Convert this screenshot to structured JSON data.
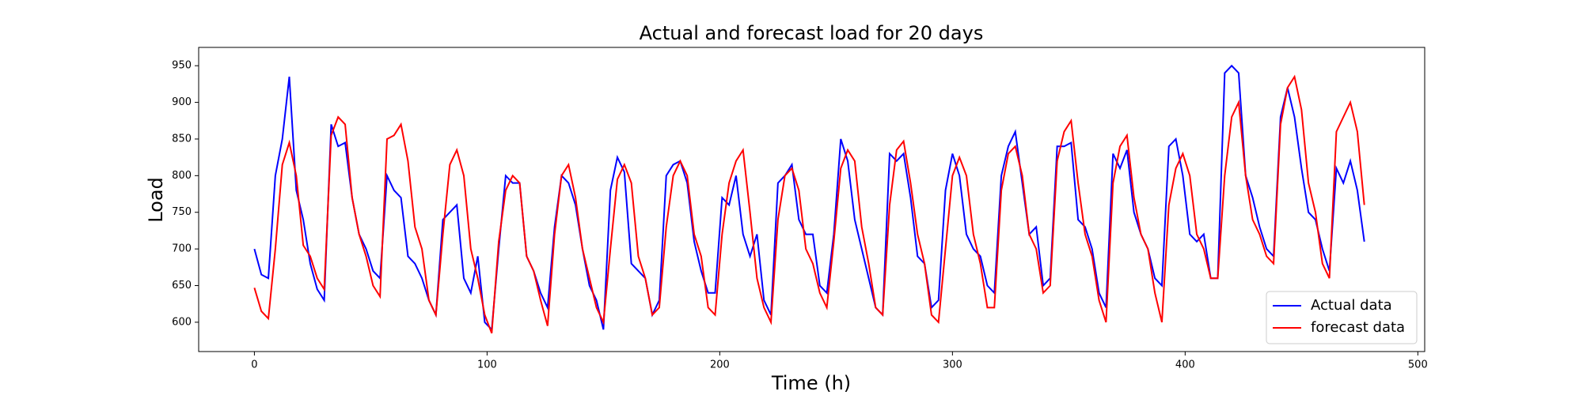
{
  "chart_data": {
    "type": "line",
    "title": "Actual and forecast load for 20 days",
    "xlabel": "Time (h)",
    "ylabel": "Load",
    "x": [
      0,
      3,
      6,
      9,
      12,
      15,
      18,
      21,
      24,
      27,
      30,
      33,
      36,
      39,
      42,
      45,
      48,
      51,
      54,
      57,
      60,
      63,
      66,
      69,
      72,
      75,
      78,
      81,
      84,
      87,
      90,
      93,
      96,
      99,
      102,
      105,
      108,
      111,
      114,
      117,
      120,
      123,
      126,
      129,
      132,
      135,
      138,
      141,
      144,
      147,
      150,
      153,
      156,
      159,
      162,
      165,
      168,
      171,
      174,
      177,
      180,
      183,
      186,
      189,
      192,
      195,
      198,
      201,
      204,
      207,
      210,
      213,
      216,
      219,
      222,
      225,
      228,
      231,
      234,
      237,
      240,
      243,
      246,
      249,
      252,
      255,
      258,
      261,
      264,
      267,
      270,
      273,
      276,
      279,
      282,
      285,
      288,
      291,
      294,
      297,
      300,
      303,
      306,
      309,
      312,
      315,
      318,
      321,
      324,
      327,
      330,
      333,
      336,
      339,
      342,
      345,
      348,
      351,
      354,
      357,
      360,
      363,
      366,
      369,
      372,
      375,
      378,
      381,
      384,
      387,
      390,
      393,
      396,
      399,
      402,
      405,
      408,
      411,
      414,
      417,
      420,
      423,
      426,
      429,
      432,
      435,
      438,
      441,
      444,
      447,
      450,
      453,
      456,
      459,
      462,
      465,
      468,
      471,
      474,
      477
    ],
    "series": [
      {
        "name": "Actual data",
        "color": "#0000ff",
        "values": [
          700,
          665,
          660,
          800,
          850,
          935,
          780,
          740,
          680,
          645,
          630,
          870,
          840,
          845,
          770,
          720,
          700,
          670,
          660,
          800,
          780,
          770,
          690,
          680,
          660,
          630,
          610,
          740,
          750,
          760,
          660,
          640,
          690,
          600,
          590,
          700,
          800,
          790,
          790,
          690,
          670,
          640,
          620,
          730,
          800,
          790,
          760,
          700,
          650,
          630,
          590,
          780,
          825,
          805,
          680,
          670,
          660,
          610,
          630,
          800,
          815,
          820,
          790,
          710,
          670,
          640,
          640,
          770,
          760,
          800,
          720,
          690,
          720,
          630,
          610,
          790,
          800,
          815,
          740,
          720,
          720,
          650,
          640,
          720,
          850,
          820,
          740,
          700,
          660,
          620,
          610,
          830,
          820,
          830,
          770,
          690,
          680,
          620,
          630,
          780,
          830,
          800,
          720,
          700,
          690,
          650,
          640,
          800,
          840,
          860,
          790,
          720,
          730,
          650,
          660,
          840,
          840,
          845,
          740,
          730,
          700,
          640,
          620,
          830,
          810,
          835,
          750,
          720,
          700,
          660,
          650,
          840,
          850,
          800,
          720,
          710,
          720,
          660,
          660,
          940,
          950,
          940,
          800,
          770,
          730,
          700,
          690,
          880,
          920,
          880,
          810,
          750,
          740,
          700,
          670,
          810,
          790,
          820,
          780,
          710
        ]
      },
      {
        "name": "forecast data",
        "color": "#ff0000",
        "values": [
          647,
          615,
          605,
          700,
          815,
          845,
          800,
          705,
          690,
          660,
          645,
          855,
          880,
          870,
          770,
          720,
          690,
          650,
          635,
          850,
          855,
          870,
          820,
          730,
          700,
          630,
          610,
          720,
          815,
          835,
          800,
          700,
          660,
          610,
          585,
          710,
          780,
          800,
          790,
          690,
          670,
          630,
          595,
          720,
          800,
          815,
          770,
          700,
          660,
          620,
          600,
          700,
          795,
          815,
          790,
          690,
          660,
          610,
          620,
          730,
          800,
          820,
          800,
          720,
          690,
          620,
          610,
          720,
          790,
          820,
          835,
          750,
          660,
          620,
          600,
          740,
          800,
          810,
          780,
          700,
          680,
          640,
          620,
          710,
          810,
          835,
          820,
          730,
          680,
          620,
          610,
          760,
          835,
          847,
          790,
          720,
          680,
          610,
          600,
          700,
          800,
          825,
          800,
          720,
          680,
          620,
          620,
          780,
          830,
          840,
          800,
          720,
          700,
          640,
          650,
          820,
          860,
          875,
          790,
          720,
          690,
          630,
          600,
          790,
          840,
          855,
          770,
          720,
          700,
          640,
          600,
          760,
          810,
          830,
          800,
          720,
          700,
          660,
          660,
          800,
          880,
          900,
          800,
          740,
          720,
          690,
          680,
          870,
          920,
          935,
          890,
          790,
          750,
          680,
          660,
          860,
          880,
          900,
          860,
          760
        ]
      }
    ],
    "xlim": [
      -23.95,
      502.95
    ],
    "xticks": [
      0,
      100,
      200,
      300,
      400,
      500
    ],
    "ylim": [
      560,
      975
    ],
    "yticks": [
      600,
      650,
      700,
      750,
      800,
      850,
      900,
      950
    ],
    "legend": "lower right"
  }
}
